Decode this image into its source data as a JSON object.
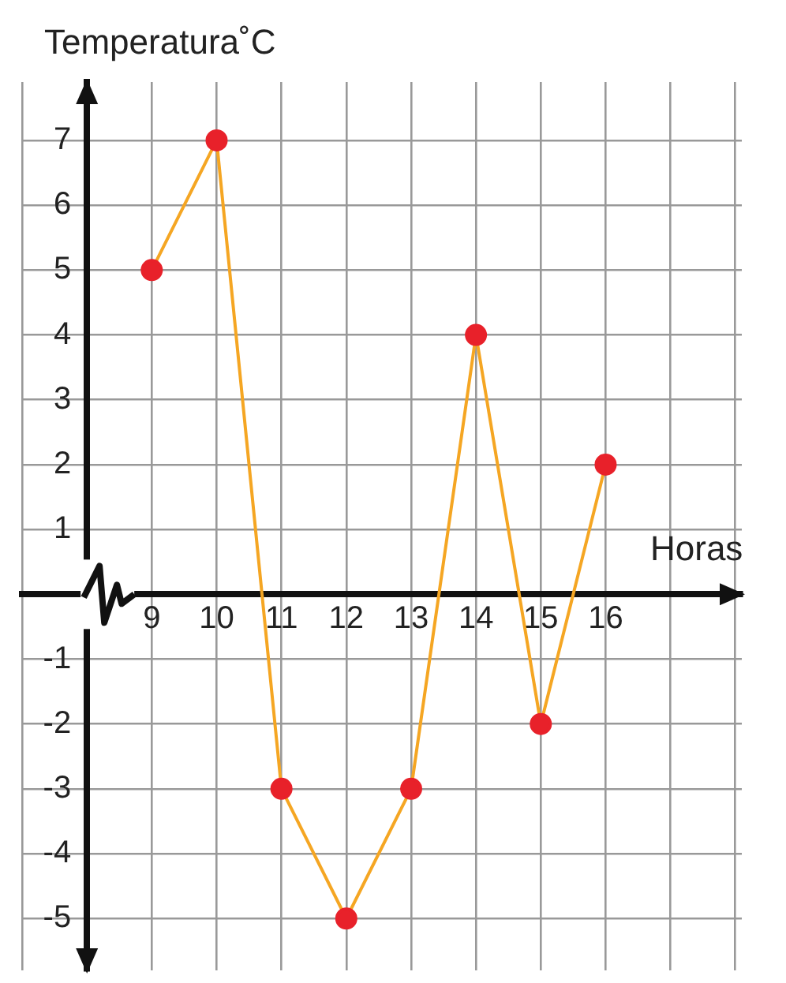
{
  "chart_data": {
    "type": "line",
    "ylabel": "Temperatura˚C",
    "xlabel": "Horas",
    "x": [
      9,
      10,
      11,
      12,
      13,
      14,
      15,
      16
    ],
    "series": [
      {
        "color": "#f5a623",
        "colors": [
          "#e8212a",
          "#e8212a",
          "#e8212a",
          "#e8212a",
          "#e8212a",
          "#e8212a",
          "#e8212a",
          "#e8212a"
        ],
        "values": [
          5,
          7,
          -3,
          -5,
          -3,
          4,
          -2,
          2
        ]
      }
    ],
    "xlim": [
      7,
      18.1
    ],
    "ylim": [
      -5.8,
      7.9
    ],
    "xticks": [
      {
        "value": 7,
        "label": null
      },
      {
        "value": 8,
        "label": null
      },
      9,
      10,
      11,
      12,
      13,
      14,
      15,
      16,
      {
        "value": 17,
        "label": null
      },
      {
        "value": 18,
        "label": null
      }
    ],
    "yticks": [
      -5,
      -4,
      -3,
      -2,
      -1,
      {
        "value": 0,
        "label": null
      },
      1,
      2,
      3,
      4,
      5,
      6,
      7
    ],
    "grid": true,
    "marker": "circle",
    "line_style": "solid"
  }
}
